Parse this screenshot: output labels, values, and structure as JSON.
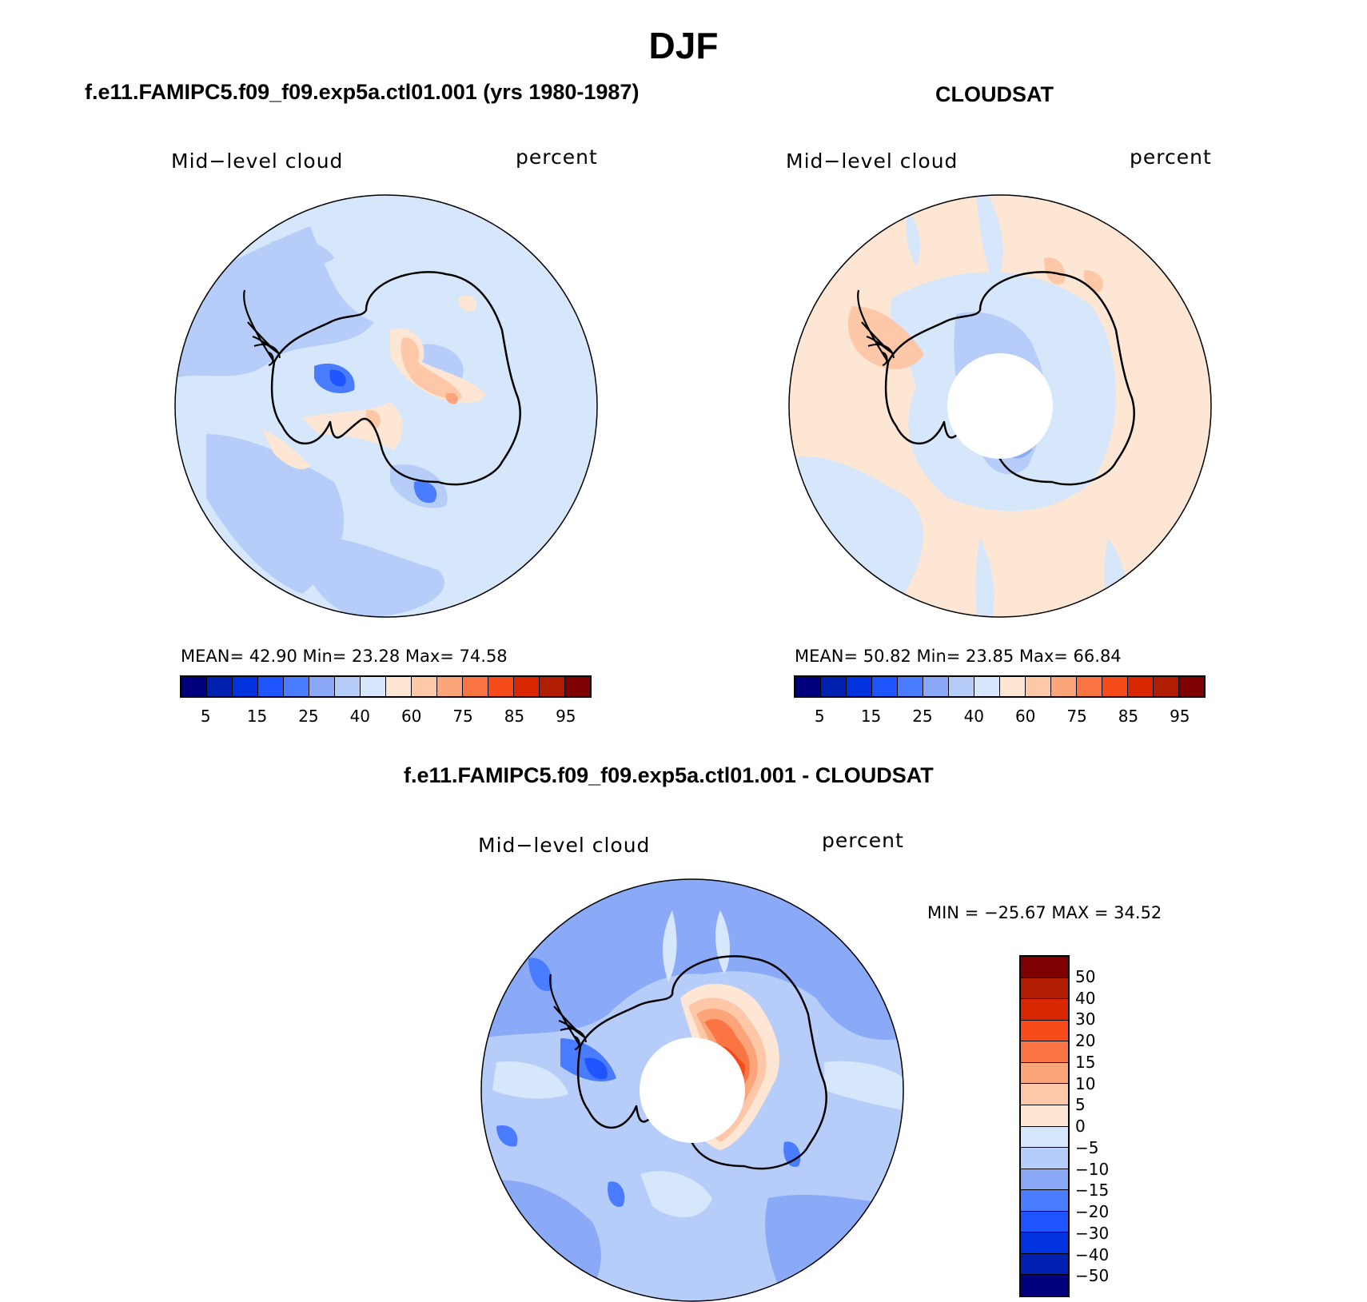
{
  "title": "DJF",
  "panels": [
    {
      "title": "f.e11.FAMIPC5.f09_f09.exp5a.ctl01.001 (yrs 1980-1987)",
      "variable": "Mid−level cloud",
      "units": "percent",
      "stats": "MEAN=   42.90   Min=   23.28   Max=   74.58",
      "colorbar_labels": [
        "5",
        "15",
        "25",
        "40",
        "60",
        "75",
        "85",
        "95"
      ]
    },
    {
      "title": "CLOUDSAT",
      "variable": "Mid−level cloud",
      "units": "percent",
      "stats": "MEAN=   50.82   Min=   23.85   Max=   66.84",
      "colorbar_labels": [
        "5",
        "15",
        "25",
        "40",
        "60",
        "75",
        "85",
        "95"
      ]
    },
    {
      "title": "f.e11.FAMIPC5.f09_f09.exp5a.ctl01.001 - CLOUDSAT",
      "variable": "Mid−level cloud",
      "units": "percent",
      "stats": "MIN = −25.67 MAX =   34.52",
      "colorbar_labels": [
        "50",
        "40",
        "30",
        "20",
        "15",
        "10",
        "5",
        "0",
        "−5",
        "−10",
        "−15",
        "−20",
        "−30",
        "−40",
        "−50"
      ]
    }
  ],
  "colors": {
    "abs_scale": [
      "#00007f",
      "#0020b0",
      "#0033dd",
      "#1f55ff",
      "#4a7cff",
      "#8aaaf8",
      "#b6cdf9",
      "#d6e7fb",
      "#fde6d4",
      "#fdc7a8",
      "#fca47a",
      "#fb7443",
      "#f54a1a",
      "#d92800",
      "#b01d00",
      "#7f0000"
    ],
    "diff_scale": [
      "#7f0000",
      "#b01d00",
      "#d92800",
      "#f54a1a",
      "#fb7443",
      "#fca47a",
      "#fdc7a8",
      "#fde6d4",
      "#d6e7fb",
      "#b6cdf9",
      "#8aaaf8",
      "#4a7cff",
      "#1f55ff",
      "#0033dd",
      "#0020b0",
      "#00007f"
    ],
    "ocean_model": "#d6e7fb",
    "ocean_cloudsat": "#fde6d4",
    "ocean_diff": "#b6cdf9"
  }
}
